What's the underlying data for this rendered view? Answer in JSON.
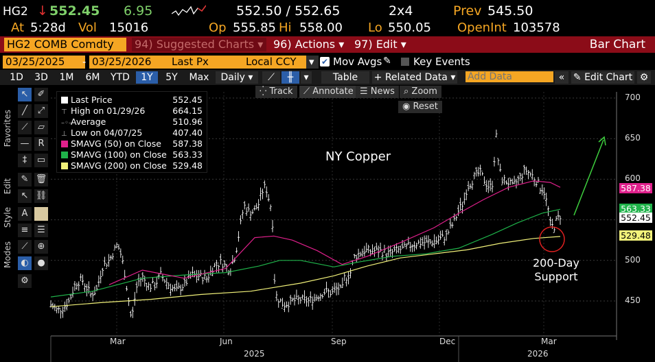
{
  "ticker_row": {
    "ticker": "HG2",
    "arrow": "↓",
    "last": "552.45",
    "change": "6.95",
    "bid_ask": "552.50 / 552.65",
    "size": "2x4",
    "prev_label": "Prev",
    "prev": "545.50"
  },
  "stats_row": {
    "at_label": "At",
    "time": "5:28d",
    "vol_label": "Vol",
    "vol": "15016",
    "op_label": "Op",
    "op": "555.85",
    "hi_label": "Hi",
    "hi": "558.00",
    "lo_label": "Lo",
    "lo": "550.05",
    "oi_label": "OpenInt",
    "oi": "103578"
  },
  "command_bar": {
    "security": "HG2 COMB Comdty",
    "suggested": "94) Suggested Charts",
    "actions": "96) Actions",
    "edit": "97) Edit",
    "title": "Bar Chart"
  },
  "controls_row": {
    "start_date": "03/25/2025",
    "end_date": "03/25/2026",
    "field": "Last Px",
    "currency": "Local CCY",
    "mov_avgs": "Mov Avgs",
    "key_events": "Key Events"
  },
  "toolbar": {
    "ranges": [
      "1D",
      "3D",
      "1M",
      "6M",
      "YTD",
      "1Y",
      "5Y",
      "Max"
    ],
    "selected_range": "1Y",
    "period": "Daily",
    "table": "Table",
    "related": "+ Related Data",
    "add_data_placeholder": "Add Data",
    "edit_chart": "Edit Chart"
  },
  "chart_tools": {
    "track": "Track",
    "annotate": "Annotate",
    "news": "News",
    "zoom": "Zoom",
    "reset": "Reset"
  },
  "side_tabs": {
    "favorites": "Favorites",
    "edit": "Edit",
    "style": "Style",
    "modes": "Modes"
  },
  "legend": {
    "items": [
      {
        "label": "Last Price",
        "value": "552.45",
        "color": "#ffffff"
      },
      {
        "label": "High on 01/29/26",
        "value": "664.15",
        "color": ""
      },
      {
        "label": "Average",
        "value": "510.96",
        "color": ""
      },
      {
        "label": "Low on 04/07/25",
        "value": "407.40",
        "color": ""
      },
      {
        "label": "SMAVG (50)  on Close",
        "value": "587.38",
        "color": "#e0208c"
      },
      {
        "label": "SMAVG (100)  on Close",
        "value": "563.33",
        "color": "#1fb34a"
      },
      {
        "label": "SMAVG (200)  on Close",
        "value": "529.48",
        "color": "#f2f27a"
      }
    ]
  },
  "annotations": {
    "title": "NY Copper",
    "support_line1": "200-Day",
    "support_line2": "Support"
  },
  "chart_data": {
    "type": "bar",
    "title": "NY Copper",
    "y_ticks": [
      450,
      500,
      550,
      600,
      650,
      700
    ],
    "ylim": [
      420,
      705
    ],
    "x_months": [
      "Mar",
      "Jun",
      "Sep",
      "Dec",
      "Mar"
    ],
    "x_years": [
      "2025",
      "2026"
    ],
    "tags": [
      {
        "value": "587.38",
        "color": "#e0208c"
      },
      {
        "value": "563.33",
        "color": "#1fb34a"
      },
      {
        "value": "552.45",
        "color": "#ffffff"
      },
      {
        "value": "529.48",
        "color": "#f2f27a"
      }
    ],
    "price_path": [
      [
        0,
        445
      ],
      [
        8,
        438
      ],
      [
        15,
        442
      ],
      [
        22,
        450
      ],
      [
        30,
        472
      ],
      [
        38,
        476
      ],
      [
        42,
        468
      ],
      [
        48,
        458
      ],
      [
        55,
        463
      ],
      [
        62,
        492
      ],
      [
        70,
        500
      ],
      [
        76,
        512
      ],
      [
        80,
        520
      ],
      [
        84,
        508
      ],
      [
        88,
        490
      ],
      [
        92,
        462
      ],
      [
        95,
        440
      ],
      [
        97,
        425
      ],
      [
        100,
        448
      ],
      [
        104,
        472
      ],
      [
        110,
        480
      ],
      [
        118,
        468
      ],
      [
        125,
        470
      ],
      [
        132,
        482
      ],
      [
        140,
        472
      ],
      [
        150,
        462
      ],
      [
        160,
        470
      ],
      [
        170,
        482
      ],
      [
        180,
        480
      ],
      [
        188,
        478
      ],
      [
        195,
        492
      ],
      [
        205,
        498
      ],
      [
        215,
        488
      ],
      [
        222,
        508
      ],
      [
        228,
        545
      ],
      [
        232,
        568
      ],
      [
        238,
        560
      ],
      [
        244,
        560
      ],
      [
        250,
        570
      ],
      [
        254,
        585
      ],
      [
        258,
        592
      ],
      [
        262,
        575
      ],
      [
        266,
        560
      ],
      [
        268,
        490
      ],
      [
        270,
        458
      ],
      [
        274,
        452
      ],
      [
        280,
        445
      ],
      [
        290,
        450
      ],
      [
        300,
        452
      ],
      [
        310,
        450
      ],
      [
        320,
        456
      ],
      [
        330,
        462
      ],
      [
        338,
        460
      ],
      [
        345,
        466
      ],
      [
        350,
        462
      ],
      [
        352,
        478
      ],
      [
        356,
        480
      ],
      [
        360,
        485
      ],
      [
        365,
        505
      ],
      [
        375,
        512
      ],
      [
        385,
        512
      ],
      [
        395,
        512
      ],
      [
        405,
        508
      ],
      [
        415,
        512
      ],
      [
        425,
        515
      ],
      [
        435,
        520
      ],
      [
        445,
        522
      ],
      [
        455,
        522
      ],
      [
        465,
        525
      ],
      [
        475,
        530
      ],
      [
        480,
        540
      ],
      [
        485,
        548
      ],
      [
        490,
        562
      ],
      [
        496,
        572
      ],
      [
        500,
        590
      ],
      [
        506,
        598
      ],
      [
        510,
        605
      ],
      [
        516,
        608
      ],
      [
        520,
        600
      ],
      [
        525,
        592
      ],
      [
        530,
        590
      ],
      [
        534,
        640
      ],
      [
        536,
        660
      ],
      [
        538,
        615
      ],
      [
        542,
        600
      ],
      [
        546,
        598
      ],
      [
        550,
        596
      ],
      [
        555,
        590
      ],
      [
        560,
        598
      ],
      [
        565,
        604
      ],
      [
        570,
        612
      ],
      [
        574,
        608
      ],
      [
        578,
        605
      ],
      [
        582,
        600
      ],
      [
        588,
        590
      ],
      [
        592,
        588
      ],
      [
        596,
        570
      ],
      [
        598,
        560
      ],
      [
        600,
        545
      ],
      [
        604,
        540
      ],
      [
        608,
        550
      ],
      [
        612,
        555
      ]
    ],
    "sma50_path": [
      [
        70,
        470
      ],
      [
        110,
        488
      ],
      [
        160,
        478
      ],
      [
        210,
        490
      ],
      [
        245,
        528
      ],
      [
        268,
        530
      ],
      [
        290,
        525
      ],
      [
        320,
        512
      ],
      [
        350,
        495
      ],
      [
        380,
        505
      ],
      [
        420,
        522
      ],
      [
        460,
        540
      ],
      [
        490,
        558
      ],
      [
        520,
        575
      ],
      [
        550,
        590
      ],
      [
        580,
        598
      ],
      [
        600,
        596
      ],
      [
        612,
        590
      ]
    ],
    "sma100_path": [
      [
        0,
        455
      ],
      [
        50,
        462
      ],
      [
        110,
        478
      ],
      [
        160,
        482
      ],
      [
        210,
        485
      ],
      [
        250,
        493
      ],
      [
        275,
        500
      ],
      [
        300,
        500
      ],
      [
        340,
        492
      ],
      [
        370,
        498
      ],
      [
        410,
        505
      ],
      [
        450,
        508
      ],
      [
        490,
        515
      ],
      [
        530,
        532
      ],
      [
        560,
        546
      ],
      [
        590,
        558
      ],
      [
        612,
        563
      ]
    ],
    "sma200_path": [
      [
        0,
        443
      ],
      [
        60,
        448
      ],
      [
        120,
        452
      ],
      [
        180,
        458
      ],
      [
        240,
        462
      ],
      [
        300,
        472
      ],
      [
        340,
        481
      ],
      [
        380,
        493
      ],
      [
        420,
        503
      ],
      [
        460,
        508
      ],
      [
        500,
        513
      ],
      [
        540,
        521
      ],
      [
        580,
        527
      ],
      [
        612,
        529.5
      ]
    ]
  }
}
